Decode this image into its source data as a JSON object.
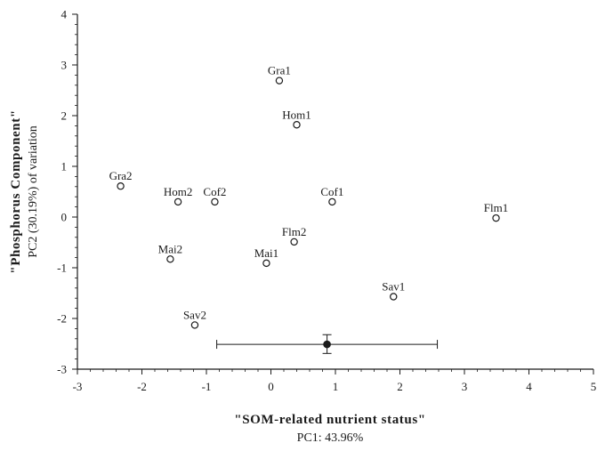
{
  "chart_data": {
    "type": "scatter",
    "xlabel": "\"SOM-related nutrient status\"",
    "xlabel_sub": "PC1: 43.96%",
    "ylabel": "\"Phosphorus Component\"",
    "ylabel_sub": "PC2 (30.19%) of variation",
    "xlim": [
      -3,
      5
    ],
    "ylim": [
      -3,
      4
    ],
    "x_ticks": [
      -3,
      -2,
      -1,
      0,
      1,
      2,
      3,
      4,
      5
    ],
    "y_ticks": [
      -3,
      -2,
      -1,
      0,
      1,
      2,
      3,
      4
    ],
    "grid": false,
    "points": [
      {
        "label": "Gra1",
        "x": 0.13,
        "y": 2.69
      },
      {
        "label": "Hom1",
        "x": 0.4,
        "y": 1.82
      },
      {
        "label": "Gra2",
        "x": -2.33,
        "y": 0.61
      },
      {
        "label": "Hom2",
        "x": -1.44,
        "y": 0.3
      },
      {
        "label": "Cof2",
        "x": -0.87,
        "y": 0.3
      },
      {
        "label": "Cof1",
        "x": 0.95,
        "y": 0.3
      },
      {
        "label": "Flm1",
        "x": 3.49,
        "y": -0.02
      },
      {
        "label": "Flm2",
        "x": 0.36,
        "y": -0.49
      },
      {
        "label": "Mai2",
        "x": -1.56,
        "y": -0.83
      },
      {
        "label": "Mai1",
        "x": -0.07,
        "y": -0.91
      },
      {
        "label": "Sav1",
        "x": 1.9,
        "y": -1.57
      },
      {
        "label": "Sav2",
        "x": -1.18,
        "y": -2.13
      }
    ],
    "error_bar": {
      "x": 0.87,
      "y": -2.51,
      "x_low": -0.84,
      "x_high": 2.58,
      "y_low": -2.69,
      "y_high": -2.32
    }
  }
}
